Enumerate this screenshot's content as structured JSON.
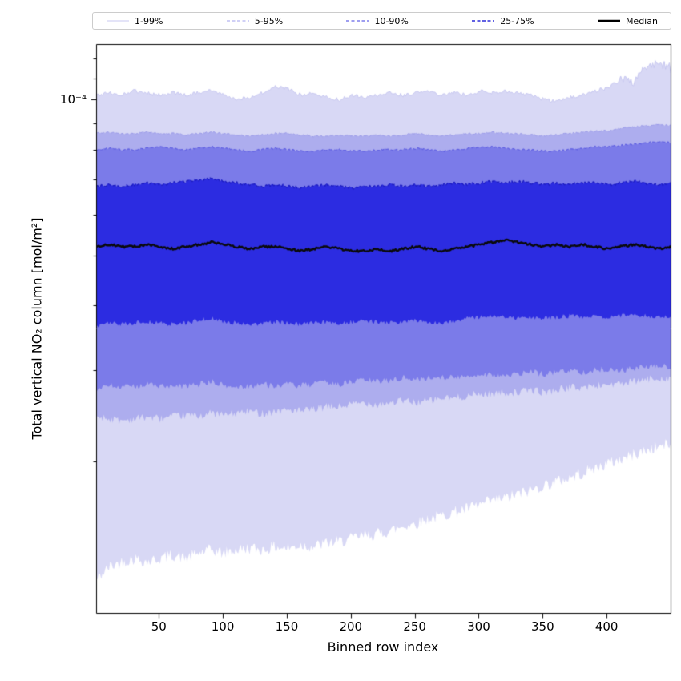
{
  "chart_data": {
    "type": "area",
    "title": "",
    "xlabel": "Binned row index",
    "ylabel": "Total vertical NO₂ column [mol/m²]",
    "y_scale": "log",
    "x_range": [
      1,
      450
    ],
    "y_range": [
      1.02e-05,
      0.000128
    ],
    "x_ticks": [
      50,
      100,
      150,
      200,
      250,
      300,
      350,
      400
    ],
    "y_axis": {
      "major": [
        {
          "value": 0.0001,
          "label": "10⁻⁴"
        }
      ],
      "minor": [
        2e-05,
        3e-05,
        4e-05,
        5e-05,
        6e-05,
        7e-05,
        8e-05,
        9e-05,
        0.00011,
        0.00012
      ]
    },
    "value_scale": 1e-05,
    "x": [
      1,
      11,
      21,
      31,
      41,
      51,
      61,
      71,
      81,
      91,
      101,
      111,
      121,
      131,
      141,
      151,
      161,
      171,
      181,
      191,
      201,
      211,
      221,
      231,
      241,
      251,
      261,
      271,
      281,
      291,
      301,
      311,
      321,
      331,
      341,
      351,
      361,
      371,
      381,
      391,
      401,
      411,
      421,
      431,
      441,
      450
    ],
    "series": {
      "p99": [
        10.2,
        10.3,
        10.2,
        10.4,
        10.3,
        10.2,
        10.3,
        10.2,
        10.3,
        10.4,
        10.2,
        10.0,
        10.1,
        10.3,
        10.6,
        10.5,
        10.2,
        10.3,
        10.1,
        10.0,
        10.2,
        10.1,
        10.2,
        10.3,
        10.2,
        10.3,
        10.4,
        10.2,
        10.3,
        10.2,
        10.4,
        10.3,
        10.4,
        10.3,
        10.2,
        10.0,
        9.9,
        10.1,
        10.2,
        10.4,
        10.5,
        11.0,
        10.8,
        11.6,
        11.8,
        11.5
      ],
      "p95": [
        8.6,
        8.65,
        8.6,
        8.6,
        8.65,
        8.6,
        8.6,
        8.55,
        8.6,
        8.65,
        8.6,
        8.55,
        8.5,
        8.55,
        8.6,
        8.6,
        8.55,
        8.5,
        8.5,
        8.55,
        8.5,
        8.5,
        8.55,
        8.5,
        8.55,
        8.6,
        8.55,
        8.5,
        8.55,
        8.6,
        8.6,
        8.65,
        8.6,
        8.6,
        8.55,
        8.5,
        8.55,
        8.6,
        8.65,
        8.7,
        8.7,
        8.8,
        8.85,
        8.9,
        8.95,
        8.9
      ],
      "p90": [
        8.0,
        8.05,
        8.0,
        8.0,
        8.05,
        8.1,
        8.05,
        8.0,
        8.05,
        8.1,
        8.05,
        8.0,
        7.95,
        8.0,
        8.05,
        8.0,
        7.95,
        7.95,
        8.0,
        8.0,
        7.95,
        7.95,
        8.0,
        8.0,
        8.0,
        8.05,
        8.0,
        7.95,
        8.0,
        8.05,
        8.1,
        8.1,
        8.05,
        8.0,
        8.0,
        7.95,
        7.95,
        8.0,
        8.05,
        8.1,
        8.1,
        8.15,
        8.2,
        8.25,
        8.3,
        8.25
      ],
      "p75": [
        6.8,
        6.85,
        6.8,
        6.85,
        6.9,
        6.85,
        6.9,
        6.95,
        7.0,
        7.05,
        6.95,
        6.9,
        6.85,
        6.8,
        6.85,
        6.8,
        6.75,
        6.8,
        6.85,
        6.8,
        6.75,
        6.8,
        6.8,
        6.85,
        6.8,
        6.85,
        6.8,
        6.85,
        6.9,
        6.85,
        6.9,
        6.95,
        6.9,
        6.95,
        6.9,
        6.85,
        6.9,
        6.85,
        6.9,
        6.9,
        6.85,
        6.9,
        6.95,
        6.9,
        6.85,
        6.9
      ],
      "p50": [
        5.2,
        5.25,
        5.2,
        5.2,
        5.25,
        5.2,
        5.15,
        5.2,
        5.25,
        5.3,
        5.25,
        5.2,
        5.15,
        5.2,
        5.2,
        5.15,
        5.1,
        5.15,
        5.2,
        5.15,
        5.1,
        5.1,
        5.15,
        5.1,
        5.15,
        5.2,
        5.15,
        5.1,
        5.15,
        5.2,
        5.25,
        5.3,
        5.35,
        5.3,
        5.25,
        5.2,
        5.25,
        5.2,
        5.25,
        5.2,
        5.15,
        5.2,
        5.25,
        5.2,
        5.15,
        5.2
      ],
      "p25": [
        3.65,
        3.7,
        3.68,
        3.7,
        3.72,
        3.7,
        3.68,
        3.7,
        3.75,
        3.78,
        3.72,
        3.7,
        3.68,
        3.7,
        3.72,
        3.7,
        3.68,
        3.7,
        3.72,
        3.7,
        3.72,
        3.74,
        3.72,
        3.7,
        3.72,
        3.75,
        3.72,
        3.7,
        3.74,
        3.78,
        3.8,
        3.82,
        3.8,
        3.78,
        3.8,
        3.78,
        3.8,
        3.82,
        3.8,
        3.82,
        3.8,
        3.82,
        3.85,
        3.82,
        3.8,
        3.82
      ],
      "p10": [
        2.75,
        2.8,
        2.78,
        2.8,
        2.82,
        2.8,
        2.78,
        2.8,
        2.82,
        2.85,
        2.8,
        2.78,
        2.8,
        2.82,
        2.8,
        2.82,
        2.8,
        2.82,
        2.85,
        2.82,
        2.85,
        2.88,
        2.85,
        2.88,
        2.9,
        2.88,
        2.9,
        2.92,
        2.9,
        2.92,
        2.95,
        2.95,
        2.92,
        2.95,
        2.98,
        2.95,
        2.98,
        3.0,
        2.98,
        3.0,
        3.02,
        3.0,
        3.02,
        3.05,
        3.05,
        3.05
      ],
      "p5": [
        2.45,
        2.42,
        2.4,
        2.42,
        2.44,
        2.42,
        2.44,
        2.46,
        2.45,
        2.48,
        2.46,
        2.48,
        2.5,
        2.48,
        2.5,
        2.52,
        2.5,
        2.52,
        2.55,
        2.55,
        2.58,
        2.6,
        2.58,
        2.6,
        2.62,
        2.6,
        2.62,
        2.65,
        2.65,
        2.68,
        2.7,
        2.7,
        2.72,
        2.72,
        2.75,
        2.72,
        2.75,
        2.78,
        2.78,
        2.8,
        2.82,
        2.82,
        2.85,
        2.88,
        2.9,
        2.9
      ],
      "p1": [
        1.18,
        1.25,
        1.28,
        1.3,
        1.28,
        1.3,
        1.32,
        1.3,
        1.33,
        1.35,
        1.33,
        1.35,
        1.36,
        1.35,
        1.37,
        1.36,
        1.38,
        1.37,
        1.39,
        1.4,
        1.42,
        1.44,
        1.45,
        1.47,
        1.5,
        1.52,
        1.55,
        1.57,
        1.6,
        1.62,
        1.65,
        1.68,
        1.7,
        1.73,
        1.76,
        1.8,
        1.83,
        1.86,
        1.9,
        1.94,
        1.98,
        2.02,
        2.06,
        2.1,
        2.14,
        2.16
      ]
    },
    "series_meta": [
      {
        "key": "p1",
        "noise": 0.028
      },
      {
        "key": "p5",
        "noise": 0.018
      },
      {
        "key": "p10",
        "noise": 0.014
      },
      {
        "key": "p25",
        "noise": 0.01
      },
      {
        "key": "p50",
        "noise": 0.005
      },
      {
        "key": "p75",
        "noise": 0.006
      },
      {
        "key": "p90",
        "noise": 0.004
      },
      {
        "key": "p95",
        "noise": 0.0035
      },
      {
        "key": "p99",
        "noise": 0.008,
        "noise_end": 0.022
      }
    ],
    "bands": [
      {
        "name": "1-99%",
        "lower": "p1",
        "upper": "p99",
        "fill": "#d8d8f5",
        "edge": "#c3c3ee",
        "edge_width": 0.9,
        "dash": []
      },
      {
        "name": "5-95%",
        "lower": "p5",
        "upper": "p95",
        "fill": "#adadee",
        "edge": "#9a9ae9",
        "edge_width": 1.0,
        "dash": [
          4,
          2.5
        ]
      },
      {
        "name": "10-90%",
        "lower": "p10",
        "upper": "p90",
        "fill": "#7b7be9",
        "edge": "#5f5fe2",
        "edge_width": 1.1,
        "dash": [
          4,
          2.5
        ]
      },
      {
        "name": "25-75%",
        "lower": "p25",
        "upper": "p75",
        "fill": "#2c2ce1",
        "edge": "#1b1bc0",
        "edge_width": 1.3,
        "dash": [
          4,
          2.5
        ]
      }
    ],
    "median": {
      "key": "p50",
      "label": "Median",
      "color": "#0a0a0a",
      "width": 2.4
    },
    "legend": [
      {
        "label": "1-99%",
        "color": "#c9c9f0",
        "width": 1,
        "dash": []
      },
      {
        "label": "5-95%",
        "color": "#a2a2ec",
        "width": 1,
        "dash": [
          4,
          2.5
        ]
      },
      {
        "label": "10-90%",
        "color": "#6363e6",
        "width": 1.2,
        "dash": [
          4,
          2.5
        ]
      },
      {
        "label": "25-75%",
        "color": "#2d2dd8",
        "width": 1.4,
        "dash": [
          4,
          2.5
        ]
      },
      {
        "label": "Median",
        "color": "#000000",
        "width": 2.6,
        "dash": []
      }
    ]
  }
}
